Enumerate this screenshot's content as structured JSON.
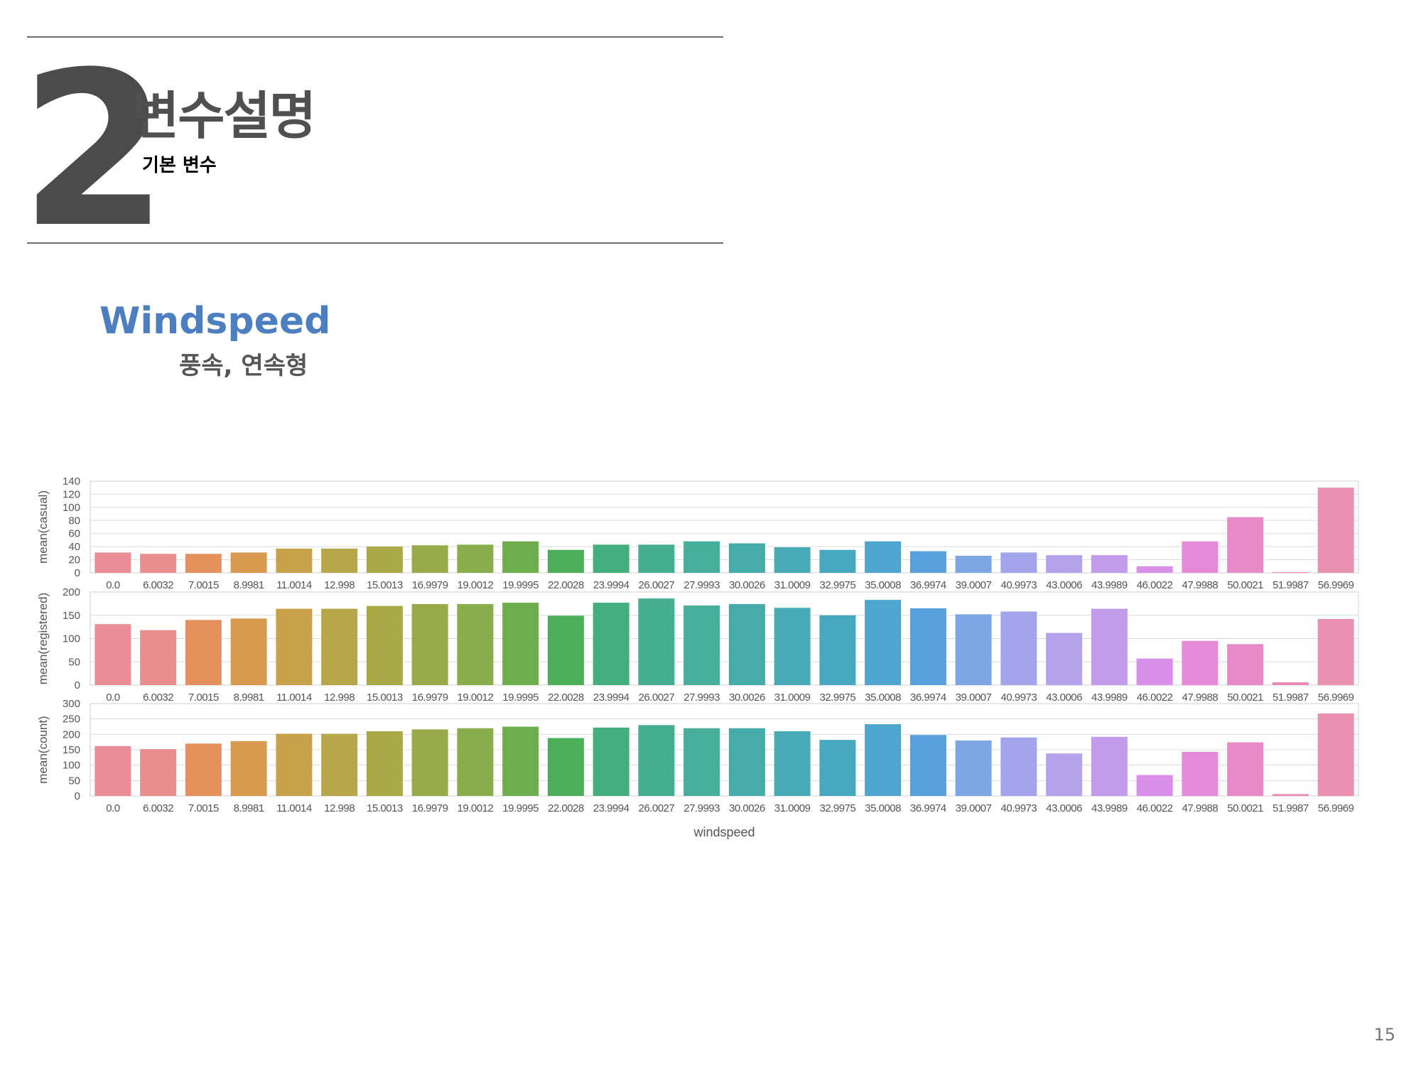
{
  "header": {
    "section_number": "2",
    "title": "변수설명",
    "subtitle": "기본 변수"
  },
  "variable": {
    "name": "Windspeed",
    "description": "풍속, 연속형"
  },
  "page_number": "15",
  "chart_data": {
    "type": "bar",
    "xlabel": "windspeed",
    "categories": [
      "0.0",
      "6.0032",
      "7.0015",
      "8.9981",
      "11.0014",
      "12.998",
      "15.0013",
      "16.9979",
      "19.0012",
      "19.9995",
      "22.0028",
      "23.9994",
      "26.0027",
      "27.9993",
      "30.0026",
      "31.0009",
      "32.9975",
      "35.0008",
      "36.9974",
      "39.0007",
      "40.9973",
      "43.0006",
      "43.9989",
      "46.0022",
      "47.9988",
      "50.0021",
      "51.9987",
      "56.9969"
    ],
    "colors": [
      "#ea8d97",
      "#e98e8c",
      "#e4915d",
      "#d99a4f",
      "#c8a24a",
      "#b7a64a",
      "#a9a948",
      "#99aa49",
      "#88ad4a",
      "#6fae4c",
      "#4dae5a",
      "#45ae7d",
      "#45ae8e",
      "#46ae9b",
      "#46acaa",
      "#47aab5",
      "#48a8c0",
      "#4da5d0",
      "#5aa0dc",
      "#7da6e4",
      "#a2a5ea",
      "#b4a3ea",
      "#c29cea",
      "#d98fe8",
      "#e58ad8",
      "#e88ac8",
      "#e98ab6",
      "#e990b0"
    ],
    "subplots": [
      {
        "ylabel": "mean(casual)",
        "ylim": [
          0,
          140
        ],
        "yticks": [
          0,
          20,
          40,
          60,
          80,
          100,
          120,
          140
        ],
        "values": [
          31,
          29,
          29,
          31,
          37,
          37,
          40,
          42,
          43,
          48,
          35,
          43,
          43,
          48,
          45,
          39,
          35,
          48,
          33,
          26,
          31,
          27,
          27,
          10,
          48,
          85,
          1,
          130
        ]
      },
      {
        "ylabel": "mean(registered)",
        "ylim": [
          0,
          200
        ],
        "yticks": [
          0,
          50,
          100,
          150,
          200
        ],
        "values": [
          131,
          118,
          140,
          143,
          164,
          164,
          170,
          174,
          174,
          177,
          149,
          177,
          186,
          171,
          174,
          166,
          150,
          183,
          165,
          152,
          158,
          112,
          164,
          57,
          95,
          88,
          6,
          142
        ]
      },
      {
        "ylabel": "mean(count)",
        "ylim": [
          0,
          300
        ],
        "yticks": [
          0,
          50,
          100,
          150,
          200,
          250,
          300
        ],
        "values": [
          162,
          152,
          170,
          178,
          202,
          202,
          210,
          216,
          220,
          225,
          188,
          222,
          230,
          220,
          220,
          210,
          182,
          233,
          198,
          180,
          190,
          138,
          192,
          68,
          143,
          174,
          6,
          268
        ]
      }
    ]
  }
}
